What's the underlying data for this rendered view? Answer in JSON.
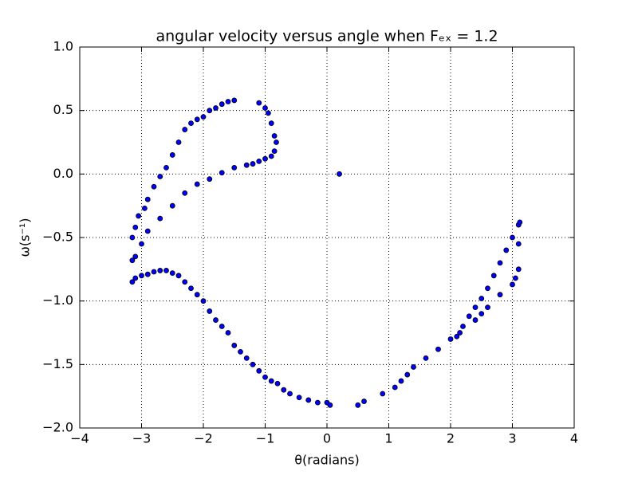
{
  "chart_data": {
    "type": "scatter",
    "title": "angular velocity versus angle when Fₑₓ = 1.2",
    "x_label": "θ(radians)",
    "y_label": "ω(s⁻¹)",
    "color": "#0000ff",
    "grid": true,
    "xlim": [
      -4,
      4
    ],
    "ylim": [
      -2.0,
      1.0
    ],
    "xticks": [
      {
        "value": -4,
        "label": "−4"
      },
      {
        "value": -3,
        "label": "−3"
      },
      {
        "value": -2,
        "label": "−2"
      },
      {
        "value": -1,
        "label": "−1"
      },
      0,
      1,
      2,
      3,
      4
    ],
    "yticks": [
      {
        "value": -2.0,
        "label": "−2.0"
      },
      {
        "value": -1.5,
        "label": "−1.5"
      },
      {
        "value": -1.0,
        "label": "−1.0"
      },
      {
        "value": -0.5,
        "label": "−0.5"
      },
      {
        "value": 0.0,
        "label": "0.0"
      },
      {
        "value": 0.5,
        "label": "0.5"
      },
      {
        "value": 1.0,
        "label": "1.0"
      }
    ],
    "x": [
      -3.15,
      -3.1,
      -3.0,
      -2.9,
      -2.8,
      -2.7,
      -2.6,
      -2.5,
      -2.4,
      -2.3,
      -2.2,
      -2.1,
      -2.0,
      -1.9,
      -1.8,
      -1.7,
      -1.6,
      -1.5,
      -1.4,
      -1.3,
      -1.2,
      -1.1,
      -1.0,
      -0.9,
      -0.8,
      -0.7,
      -0.6,
      -0.45,
      -0.3,
      -0.15,
      0.0,
      0.05,
      0.5,
      0.6,
      0.9,
      1.1,
      1.2,
      1.3,
      1.4,
      1.6,
      1.8,
      2.0,
      2.1,
      2.15,
      2.2,
      2.3,
      2.4,
      2.5,
      2.6,
      2.7,
      2.8,
      2.9,
      3.0,
      3.1,
      2.4,
      2.5,
      2.6,
      2.8,
      3.0,
      3.05,
      3.1,
      3.1,
      3.12,
      -3.15,
      -3.1,
      -3.05,
      -2.95,
      -2.9,
      -2.8,
      -2.7,
      -2.6,
      -2.5,
      -2.4,
      -2.3,
      -2.2,
      -2.1,
      -2.0,
      -1.9,
      -1.8,
      -1.7,
      -1.6,
      -1.5,
      -1.1,
      -1.0,
      -0.95,
      -0.9,
      -0.85,
      -0.82,
      -0.85,
      -0.9,
      -1.0,
      -1.1,
      -1.2,
      -1.3,
      -1.5,
      -1.7,
      -1.9,
      -2.1,
      -2.3,
      -2.5,
      -2.7,
      -2.9,
      -3.0,
      -3.1,
      -3.15,
      0.2
    ],
    "values": [
      -0.85,
      -0.82,
      -0.8,
      -0.79,
      -0.77,
      -0.76,
      -0.76,
      -0.78,
      -0.8,
      -0.85,
      -0.9,
      -0.95,
      -1.0,
      -1.08,
      -1.15,
      -1.2,
      -1.25,
      -1.35,
      -1.4,
      -1.45,
      -1.5,
      -1.55,
      -1.6,
      -1.63,
      -1.65,
      -1.7,
      -1.73,
      -1.76,
      -1.78,
      -1.8,
      -1.8,
      -1.82,
      -1.82,
      -1.79,
      -1.73,
      -1.68,
      -1.63,
      -1.58,
      -1.52,
      -1.45,
      -1.38,
      -1.3,
      -1.28,
      -1.25,
      -1.2,
      -1.12,
      -1.05,
      -0.98,
      -0.9,
      -0.8,
      -0.7,
      -0.6,
      -0.5,
      -0.4,
      -1.15,
      -1.1,
      -1.05,
      -0.95,
      -0.87,
      -0.82,
      -0.75,
      -0.55,
      -0.38,
      -0.5,
      -0.42,
      -0.33,
      -0.27,
      -0.2,
      -0.1,
      -0.02,
      0.05,
      0.15,
      0.25,
      0.35,
      0.4,
      0.43,
      0.45,
      0.5,
      0.52,
      0.55,
      0.57,
      0.58,
      0.56,
      0.52,
      0.48,
      0.4,
      0.3,
      0.25,
      0.18,
      0.14,
      0.12,
      0.1,
      0.08,
      0.07,
      0.05,
      0.01,
      -0.04,
      -0.08,
      -0.15,
      -0.25,
      -0.35,
      -0.45,
      -0.55,
      -0.65,
      -0.68,
      0.0
    ]
  }
}
